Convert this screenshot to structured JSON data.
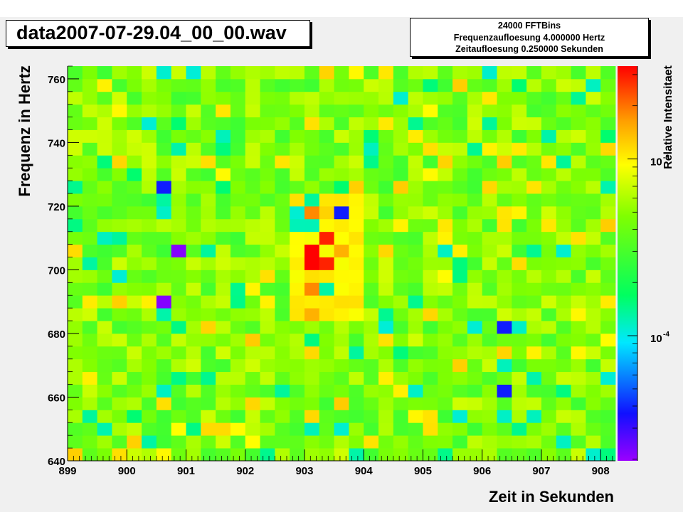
{
  "header": {
    "title": "data2007-07-29.04_00_00.wav",
    "info_line1": "24000 FFTBins",
    "info_line2": "Frequenzaufloesung 4.000000 Hertz",
    "info_line3": "Zeitaufloesung 0.250000 Sekunden"
  },
  "chart_data": {
    "type": "heatmap",
    "title": "data2007-07-29.04_00_00.wav",
    "xlabel": "Zeit in Sekunden",
    "ylabel": "Frequenz in Hertz",
    "zlabel": "Relative Intensitaet",
    "xlim": [
      899,
      908.25
    ],
    "ylim": [
      640,
      764
    ],
    "x_bin_width": 0.25,
    "y_bin_width": 4,
    "x_ticks": [
      "899",
      "900",
      "901",
      "902",
      "903",
      "904",
      "905",
      "906",
      "907",
      "908"
    ],
    "y_ticks": [
      "640",
      "660",
      "680",
      "700",
      "720",
      "740",
      "760"
    ],
    "z_scale": "log",
    "z_ticks": [
      {
        "base": "10",
        "exp": "-3",
        "value": 0.001
      },
      {
        "base": "10",
        "exp": "-4",
        "value": 0.0001
      }
    ],
    "palette": [
      "#8000ff",
      "#0000ff",
      "#00ffff",
      "#00ff00",
      "#ffff00",
      "#ff0000"
    ],
    "background_level": "green / yellow-green, approx 0.5e-3 to 1.5e-3",
    "hotspots": [
      {
        "t": 903.0,
        "f": 700,
        "level": "max (red)"
      },
      {
        "t": 903.0,
        "f": 704,
        "level": "max (red)"
      },
      {
        "t": 903.25,
        "f": 708,
        "level": "high (red)"
      },
      {
        "t": 903.25,
        "f": 700,
        "level": "high (red)"
      },
      {
        "t": 903.0,
        "f": 716,
        "level": "high (orange)"
      },
      {
        "t": 903.0,
        "f": 692,
        "level": "high (orange)"
      },
      {
        "t": 903.0,
        "f": 684,
        "level": "elevated (orange)"
      },
      {
        "t": 903.5,
        "f": 704,
        "level": "elevated (orange)"
      }
    ],
    "lows": [
      {
        "t": 900.5,
        "f": 724,
        "level": "low (blue)"
      },
      {
        "t": 900.75,
        "f": 704,
        "level": "very low (violet)"
      },
      {
        "t": 900.5,
        "f": 688,
        "level": "very low (violet)"
      },
      {
        "t": 903.5,
        "f": 716,
        "level": "low (blue)"
      },
      {
        "t": 906.25,
        "f": 680,
        "level": "low (blue)"
      },
      {
        "t": 906.25,
        "f": 660,
        "level": "low (blue)"
      }
    ]
  }
}
